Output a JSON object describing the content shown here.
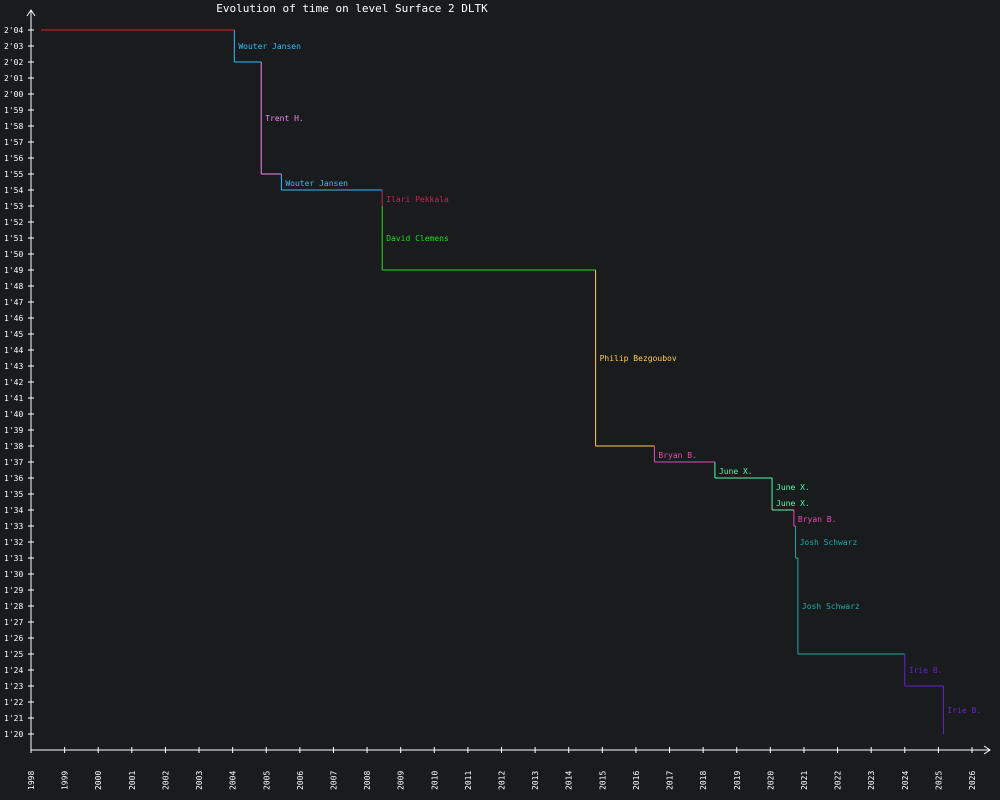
{
  "chart_data": {
    "type": "line",
    "step": true,
    "title": "Evolution of time on level Surface 2 DLTK",
    "background": "#1a1b1d",
    "axis_color": "#ffffff",
    "xlim": [
      1998,
      2026.4
    ],
    "ylim_seconds": [
      80,
      124
    ],
    "x_ticks": [
      "1998",
      "1999",
      "2000",
      "2001",
      "2002",
      "2003",
      "2004",
      "2005",
      "2006",
      "2007",
      "2008",
      "2009",
      "2010",
      "2011",
      "2012",
      "2013",
      "2014",
      "2015",
      "2016",
      "2017",
      "2018",
      "2019",
      "2020",
      "2021",
      "2022",
      "2023",
      "2024",
      "2025",
      "2026"
    ],
    "y_ticks": [
      "1'20",
      "1'21",
      "1'22",
      "1'23",
      "1'24",
      "1'25",
      "1'26",
      "1'27",
      "1'28",
      "1'29",
      "1'30",
      "1'31",
      "1'32",
      "1'33",
      "1'34",
      "1'35",
      "1'36",
      "1'37",
      "1'38",
      "1'39",
      "1'40",
      "1'41",
      "1'42",
      "1'43",
      "1'44",
      "1'45",
      "1'46",
      "1'47",
      "1'48",
      "1'49",
      "1'50",
      "1'51",
      "1'52",
      "1'53",
      "1'54",
      "1'55",
      "1'56",
      "1'57",
      "1'58",
      "1'59",
      "2'00",
      "2'01",
      "2'02",
      "2'03",
      "2'04"
    ],
    "initial": {
      "x": 1998.3,
      "time_seconds": 124,
      "color": "#dd2222"
    },
    "records": [
      {
        "player": "Wouter Jansen",
        "date": 2004.05,
        "time_seconds": 122,
        "color": "#33bbff"
      },
      {
        "player": "Trent H.",
        "date": 2004.85,
        "time_seconds": 115,
        "color": "#ee88ee"
      },
      {
        "player": "Wouter Jansen",
        "date": 2005.45,
        "time_seconds": 114,
        "color": "#33bbff"
      },
      {
        "player": "Ilari Pekkala",
        "date": 2008.45,
        "time_seconds": 113,
        "color": "#cc2255"
      },
      {
        "player": "David Clemens",
        "date": 2008.45,
        "time_seconds": 109,
        "color": "#22dd22"
      },
      {
        "player": "Philip Bezgoubov",
        "date": 2014.8,
        "time_seconds": 98,
        "color": "#ffcc55"
      },
      {
        "player": "Bryan B.",
        "date": 2016.55,
        "time_seconds": 97,
        "color": "#ee44bb"
      },
      {
        "player": "June X.",
        "date": 2018.35,
        "time_seconds": 96,
        "color": "#44ffaa"
      },
      {
        "player": "June X.",
        "date": 2020.05,
        "time_seconds": 95,
        "color": "#44ffaa"
      },
      {
        "player": "June X.",
        "date": 2020.05,
        "time_seconds": 94,
        "color": "#44ffaa"
      },
      {
        "player": "Bryan B.",
        "date": 2020.7,
        "time_seconds": 93,
        "color": "#ee44bb"
      },
      {
        "player": "Josh Schwarz",
        "date": 2020.75,
        "time_seconds": 91,
        "color": "#22aaaa"
      },
      {
        "player": "Josh Schwarz",
        "date": 2020.82,
        "time_seconds": 85,
        "color": "#22aaaa"
      },
      {
        "player": "Irie B.",
        "date": 2024.0,
        "time_seconds": 83,
        "color": "#6622cc"
      },
      {
        "player": "Irie B.",
        "date": 2025.15,
        "time_seconds": 80,
        "color": "#6622cc"
      }
    ]
  }
}
